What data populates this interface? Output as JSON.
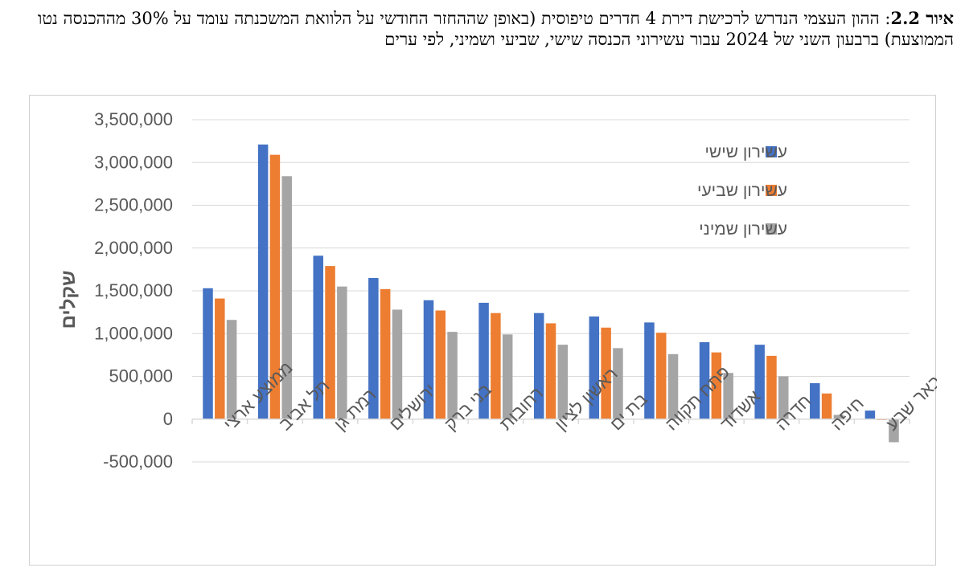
{
  "caption": {
    "label": "איור 2.2",
    "text": ": ההון העצמי הנדרש לרכישת דירת 4 חדרים טיפוסית (באופן שההחזר החודשי על הלוואת המשכנתה עומד על 30% מההכנסה נטו הממוצעת) ברבעון השני של 2024 עבור עשירוני הכנסה שישי, שביעי ושמיני, לפי ערים"
  },
  "chart_data": {
    "type": "bar",
    "ylabel": "שקלים",
    "ylim": [
      -500000,
      3500000
    ],
    "yticks": [
      3500000,
      3000000,
      2500000,
      2000000,
      1500000,
      1000000,
      500000,
      0,
      -500000
    ],
    "ytick_labels": [
      "3,500,000",
      "3,000,000",
      "2,500,000",
      "2,000,000",
      "1,500,000",
      "1,000,000",
      "500,000",
      "0",
      "-500,000"
    ],
    "grid": true,
    "legend_position": "top-right",
    "categories": [
      "ממוצע ארצי",
      "תל אביב",
      "רמת גן",
      "ירושלים",
      "בני ברק",
      "רחובות",
      "ראשון לציון",
      "בת ים",
      "פתח תקווה",
      "אשדוד",
      "חדרה",
      "חיפה",
      "באר שבע"
    ],
    "series": [
      {
        "name": "עשירון שישי",
        "color": "#4472C4",
        "values": [
          1530000,
          3210000,
          1910000,
          1650000,
          1390000,
          1360000,
          1240000,
          1200000,
          1130000,
          900000,
          870000,
          420000,
          100000
        ]
      },
      {
        "name": "עשירון שביעי",
        "color": "#ED7D31",
        "values": [
          1410000,
          3090000,
          1790000,
          1520000,
          1270000,
          1240000,
          1120000,
          1070000,
          1010000,
          780000,
          740000,
          300000,
          -10000
        ]
      },
      {
        "name": "עשירון שמיני",
        "color": "#A5A5A5",
        "values": [
          1160000,
          2840000,
          1550000,
          1280000,
          1020000,
          990000,
          870000,
          830000,
          760000,
          540000,
          500000,
          50000,
          -270000
        ]
      }
    ]
  }
}
